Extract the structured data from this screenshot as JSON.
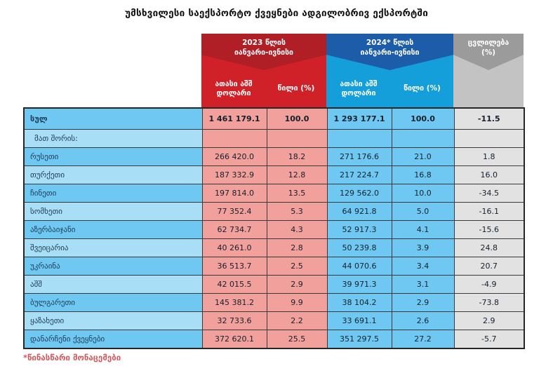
{
  "header": {
    "g2023": {
      "line1": "2023 წლის",
      "line2": "იანვარი-ივნისი",
      "amount": "ათასი აშშ დოლარი",
      "share": "წილი (%)"
    },
    "g2024": {
      "line1": "2024* წლის",
      "line2": "იანვარი-ივნისი",
      "amount": "ათასი აშშ დოლარი",
      "share": "წილი (%)"
    },
    "gchange": {
      "line1": "ცვლილება",
      "line2": "(%)"
    }
  },
  "footnote": "*წინასწარი მონაცემები",
  "colors": {
    "dark_red": "#B01E26",
    "red": "#D02028",
    "salmon": "#F2A09C",
    "dark_blue": "#1C5CA8",
    "blue": "#149FDB",
    "cell_blue": "#6FC8F1",
    "cell_blue_light": "#A9DEF7",
    "dark_gray": "#9B9B9B",
    "gray": "#C3C3C3",
    "cell_gray": "#E2E2E2",
    "border": "#3A3A3A",
    "border_outer": "#262626",
    "name_text": "#1E3A56",
    "num_text": "#14202C",
    "footnote_red": "#D25A5E",
    "title_text": "#121212"
  },
  "chart_data": {
    "type": "table",
    "title": "უმსხვილესი საექსპორტო ქვეყნები ადგილობრივ ექსპორტში",
    "column_groups": [
      "2023 წლის იანვარი-ივნისი",
      "2024* წლის იანვარი-ივნისი",
      "ცვლილება (%)"
    ],
    "columns": [
      "",
      "ათასი აშშ დოლარი",
      "წილი (%)",
      "ათასი აშშ დოლარი",
      "წილი (%)",
      "ცვლილება (%)"
    ],
    "rows": [
      {
        "kind": "total",
        "label": "სულ",
        "v2023": "1 461 179.1",
        "s2023": "100.0",
        "v2024": "1 293 177.1",
        "s2024": "100.0",
        "change": "-11.5"
      },
      {
        "kind": "group",
        "label": "მათ შორის:",
        "v2023": "",
        "s2023": "",
        "v2024": "",
        "s2024": "",
        "change": ""
      },
      {
        "kind": "country",
        "label": "რუსეთი",
        "v2023": "266 420.0",
        "s2023": "18.2",
        "v2024": "271 176.6",
        "s2024": "21.0",
        "change": "1.8"
      },
      {
        "kind": "country",
        "label": "თურქეთი",
        "v2023": "187 332.9",
        "s2023": "12.8",
        "v2024": "217 224.7",
        "s2024": "16.8",
        "change": "16.0"
      },
      {
        "kind": "country",
        "label": "ჩინეთი",
        "v2023": "197 814.0",
        "s2023": "13.5",
        "v2024": "129 562.0",
        "s2024": "10.0",
        "change": "-34.5"
      },
      {
        "kind": "country",
        "label": "სომხეთი",
        "v2023": "77 352.4",
        "s2023": "5.3",
        "v2024": "64 921.8",
        "s2024": "5.0",
        "change": "-16.1"
      },
      {
        "kind": "country",
        "label": "აზერბაიჯანი",
        "v2023": "62 734.7",
        "s2023": "4.3",
        "v2024": "52 917.3",
        "s2024": "4.1",
        "change": "-15.6"
      },
      {
        "kind": "country",
        "label": "შვეიცარია",
        "v2023": "40 261.0",
        "s2023": "2.8",
        "v2024": "50 239.8",
        "s2024": "3.9",
        "change": "24.8"
      },
      {
        "kind": "country",
        "label": "უკრაინა",
        "v2023": "36 513.7",
        "s2023": "2.5",
        "v2024": "44 070.6",
        "s2024": "3.4",
        "change": "20.7"
      },
      {
        "kind": "country",
        "label": "აშშ",
        "v2023": "42 015.5",
        "s2023": "2.9",
        "v2024": "39 971.3",
        "s2024": "3.1",
        "change": "-4.9"
      },
      {
        "kind": "country",
        "label": "ბულგარეთი",
        "v2023": "145 381.2",
        "s2023": "9.9",
        "v2024": "38 104.2",
        "s2024": "2.9",
        "change": "-73.8"
      },
      {
        "kind": "country",
        "label": "ყაზახეთი",
        "v2023": "32 733.6",
        "s2023": "2.2",
        "v2024": "33 691.1",
        "s2024": "2.6",
        "change": "2.9"
      },
      {
        "kind": "country",
        "label": "დანარჩენი ქვეყნები",
        "v2023": "372 620.1",
        "s2023": "25.5",
        "v2024": "351 297.5",
        "s2024": "27.2",
        "change": "-5.7"
      }
    ]
  }
}
